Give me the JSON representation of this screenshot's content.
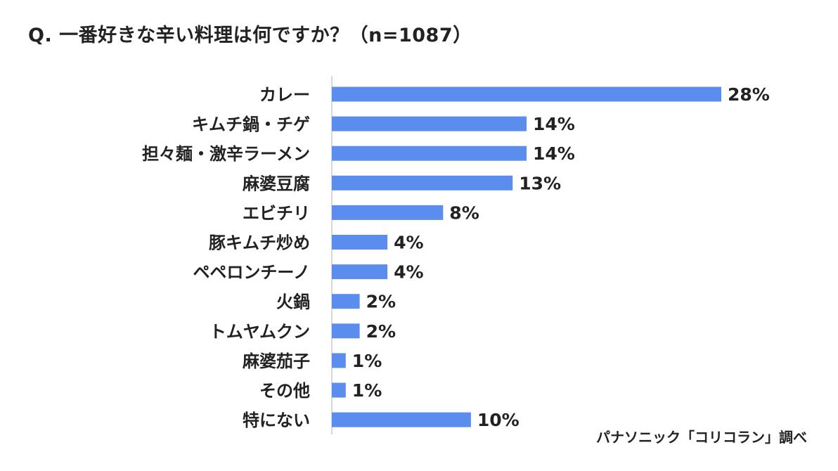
{
  "chart_data": {
    "type": "bar",
    "orientation": "horizontal",
    "title": "Q. 一番好きな辛い料理は何ですか？（n=1087）",
    "source": "パナソニック「コリコラン」調べ",
    "categories": [
      "カレー",
      "キムチ鍋・チゲ",
      "担々麺・激辛ラーメン",
      "麻婆豆腐",
      "エビチリ",
      "豚キムチ炒め",
      "ペペロンチーノ",
      "火鍋",
      "トムヤムクン",
      "麻婆茄子",
      "その他",
      "特にない"
    ],
    "values": [
      28,
      14,
      14,
      13,
      8,
      4,
      4,
      2,
      2,
      1,
      1,
      10
    ],
    "value_labels": [
      "28%",
      "14%",
      "14%",
      "13%",
      "8%",
      "4%",
      "4%",
      "2%",
      "2%",
      "1%",
      "1%",
      "10%"
    ],
    "unit": "%",
    "xlim": [
      0,
      28
    ],
    "bar_color": "#5b8def",
    "axis_color": "#cccccc",
    "grid": false,
    "legend": "none"
  }
}
